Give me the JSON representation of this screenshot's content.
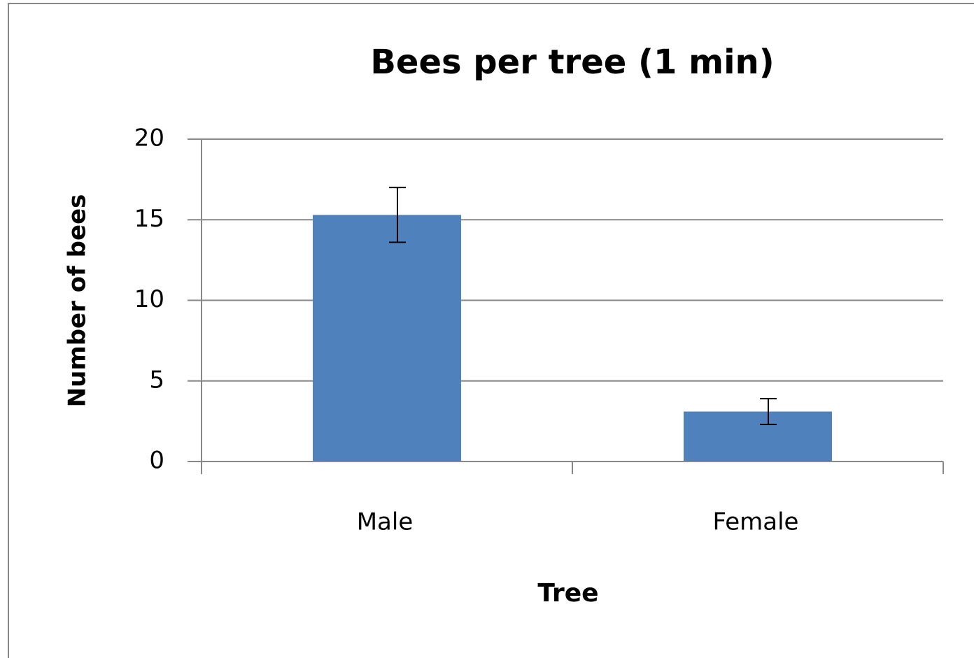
{
  "chart_data": {
    "type": "bar",
    "title": "Bees per tree (1 min)",
    "x_label": "Tree",
    "y_label": "Number of bees",
    "categories": [
      "Male",
      "Female"
    ],
    "values": [
      15.3,
      3.1
    ],
    "errors": [
      1.7,
      0.8
    ],
    "color": "#4f81bd",
    "ylim": [
      0,
      20
    ],
    "yticks": [
      0,
      5,
      10,
      15,
      20
    ],
    "grid": true
  }
}
